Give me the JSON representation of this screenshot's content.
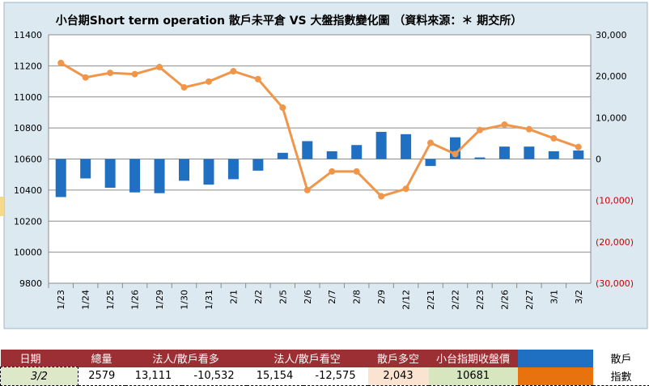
{
  "chart_data": {
    "type": "bar",
    "title": "小台期Short term operation 散戶未平倉 VS 大盤指數變化圖 （資料來源：＊ 期交所）",
    "categories": [
      "1/23",
      "1/24",
      "1/25",
      "1/26",
      "1/29",
      "1/30",
      "1/31",
      "2/1",
      "2/2",
      "2/5",
      "2/6",
      "2/7",
      "2/8",
      "2/9",
      "2/12",
      "2/21",
      "2/22",
      "2/23",
      "2/26",
      "2/27",
      "3/1",
      "3/2"
    ],
    "series": [
      {
        "name": "散戶",
        "type": "bar",
        "axis": "left",
        "color": "#1f6fc2",
        "values": [
          10355,
          10475,
          10415,
          10385,
          10380,
          10460,
          10435,
          10470,
          10525,
          10640,
          10715,
          10650,
          10690,
          10775,
          10760,
          10555,
          10740,
          10610,
          10680,
          10680,
          10650,
          10655
        ]
      },
      {
        "name": "指數",
        "type": "line",
        "axis": "right",
        "color": "#f0964a",
        "values": [
          23200,
          19700,
          20800,
          20500,
          22200,
          17300,
          18700,
          21200,
          19300,
          12400,
          -7500,
          -3000,
          -3000,
          -9000,
          -7200,
          3900,
          1200,
          7000,
          8300,
          7200,
          5000,
          2900
        ]
      }
    ],
    "y_left": {
      "min": 9800,
      "max": 11400,
      "step": 200,
      "baseline": 10600,
      "ticks": [
        "9800",
        "10000",
        "10200",
        "10400",
        "10600",
        "10800",
        "11000",
        "11200",
        "11400"
      ]
    },
    "y_right": {
      "min": -30000,
      "max": 30000,
      "step": 10000,
      "ticks": [
        "(30,000)",
        "(20,000)",
        "(10,000)",
        "0",
        "10,000",
        "20,000",
        "30,000"
      ]
    },
    "grid": true
  },
  "table": {
    "headers": [
      "日期",
      "總量",
      "法人/散戶看多",
      "法人/散戶看空",
      "散戶多空",
      "小台指期收盤價"
    ],
    "legend_label_1": "散戶",
    "legend_label_2": "指數",
    "row": {
      "date": "3/2",
      "total": "2579",
      "long_inst": "13,111",
      "long_retail": "-10,532",
      "short_inst": "15,154",
      "short_retail": "-12,575",
      "retail_net": "2,043",
      "close": "10681"
    }
  }
}
